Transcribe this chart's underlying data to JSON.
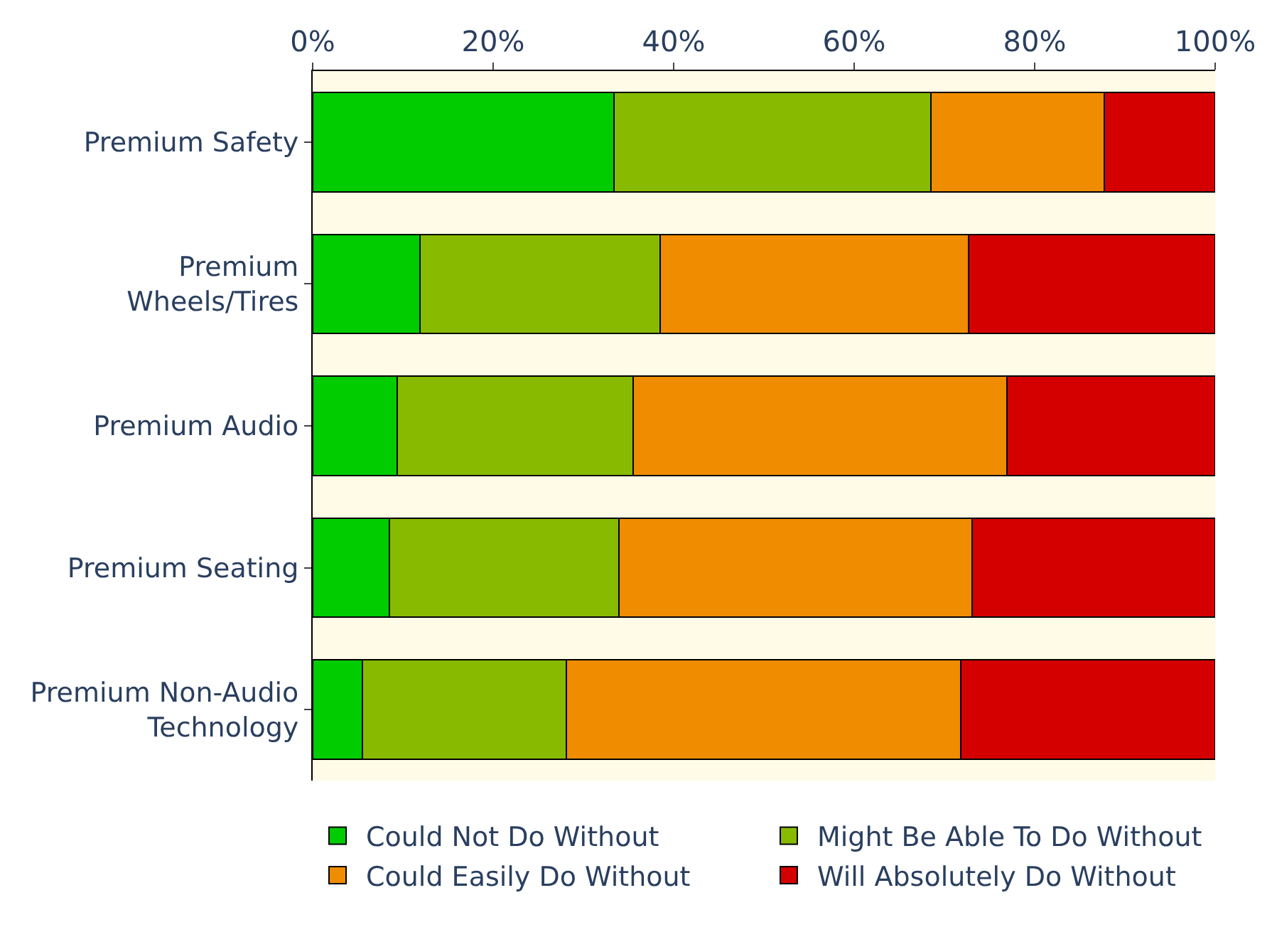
{
  "chart_data": {
    "type": "bar",
    "orientation": "horizontal",
    "stacked": true,
    "categories": [
      "Premium Safety",
      "Premium Wheels/Tires",
      "Premium Audio",
      "Premium Seating",
      "Premium Non-Audio Technology"
    ],
    "series": [
      {
        "name": "Could Not Do Without",
        "color": "#00cc00",
        "values": [
          33.4,
          11.9,
          9.4,
          8.5,
          5.5
        ]
      },
      {
        "name": "Might Be Able To Do Without",
        "color": "#88bb00",
        "values": [
          35.1,
          26.6,
          26.1,
          25.4,
          22.6
        ]
      },
      {
        "name": "Could Easily Do Without",
        "color": "#f08c00",
        "values": [
          19.2,
          34.2,
          41.4,
          39.2,
          43.7
        ]
      },
      {
        "name": "Will Absolutely Do Without",
        "color": "#d40000",
        "values": [
          12.3,
          27.3,
          23.1,
          26.9,
          28.2
        ]
      }
    ],
    "xlim": [
      0,
      100
    ],
    "xticks": [
      {
        "value": 0,
        "label": "0%"
      },
      {
        "value": 20,
        "label": "20%"
      },
      {
        "value": 40,
        "label": "40%"
      },
      {
        "value": 60,
        "label": "60%"
      },
      {
        "value": 80,
        "label": "80%"
      },
      {
        "value": 100,
        "label": "100%"
      }
    ],
    "grid": false,
    "legend": "bottom"
  }
}
